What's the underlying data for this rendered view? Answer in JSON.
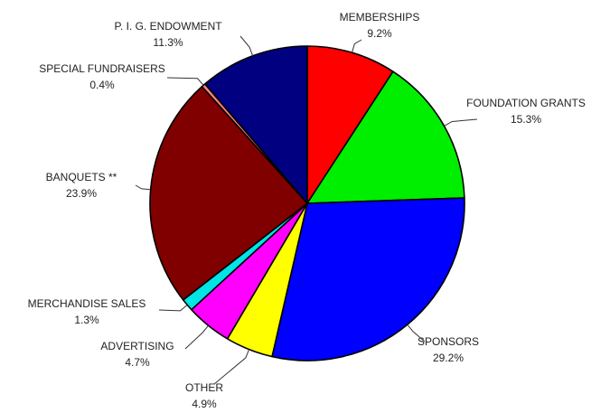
{
  "chart_data": {
    "type": "pie",
    "title": "",
    "slices": [
      {
        "name": "MEMBERSHIPS",
        "value": 9.2,
        "pct_label": "9.2%",
        "color": "#ff0000"
      },
      {
        "name": "FOUNDATION GRANTS",
        "value": 15.3,
        "pct_label": "15.3%",
        "color": "#00ee00"
      },
      {
        "name": "SPONSORS",
        "value": 29.2,
        "pct_label": "29.2%",
        "color": "#0000ff"
      },
      {
        "name": "OTHER",
        "value": 4.9,
        "pct_label": "4.9%",
        "color": "#ffff00"
      },
      {
        "name": "ADVERTISING",
        "value": 4.7,
        "pct_label": "4.7%",
        "color": "#ff00ff"
      },
      {
        "name": "MERCHANDISE SALES",
        "value": 1.3,
        "pct_label": "1.3%",
        "color": "#00e5e5"
      },
      {
        "name": "BANQUETS **",
        "value": 23.9,
        "pct_label": "23.9%",
        "color": "#800000"
      },
      {
        "name": "SPECIAL FUNDRAISERS",
        "value": 0.4,
        "pct_label": "0.4%",
        "color": "#ff8080"
      },
      {
        "name": "P. I. G. ENDOWMENT",
        "value": 11.3,
        "pct_label": "11.3%",
        "color": "#000080"
      }
    ],
    "start": "top",
    "direction": "clockwise"
  }
}
